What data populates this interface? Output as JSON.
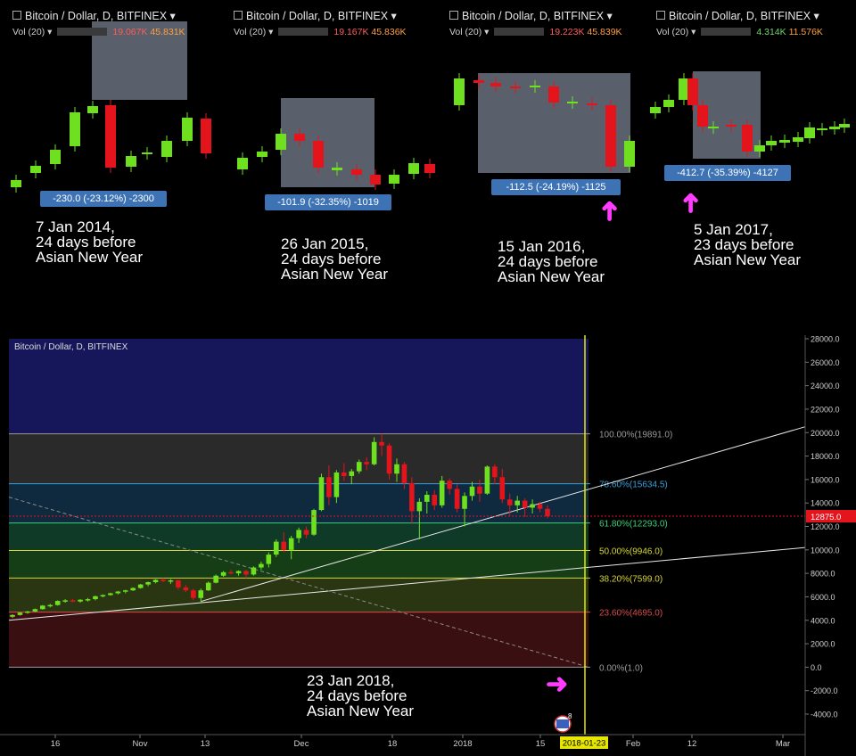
{
  "panels": [
    {
      "title": "Bitcoin / Dollar, D, BITFINEX",
      "vol_label": "Vol (20)",
      "vol_v1": "19.067K",
      "vol_v2": "45.831K",
      "measure": "-230.0 (-23.12%) -2300",
      "caption": "7 Jan 2014,\n24 days before\nAsian New Year"
    },
    {
      "title": "Bitcoin / Dollar, D, BITFINEX",
      "vol_label": "Vol (20)",
      "vol_v1": "19.167K",
      "vol_v2": "45.836K",
      "measure": "-101.9 (-32.35%) -1019",
      "caption": "26 Jan 2015,\n24 days before\nAsian New Year"
    },
    {
      "title": "Bitcoin / Dollar, D, BITFINEX",
      "vol_label": "Vol (20)",
      "vol_v1": "19.223K",
      "vol_v2": "45.839K",
      "measure": "-112.5 (-24.19%) -1125",
      "caption": "15 Jan 2016,\n24 days before\nAsian New Year"
    },
    {
      "title": "Bitcoin / Dollar, D, BITFINEX",
      "vol_label": "Vol (20)",
      "vol_v1": "4.314K",
      "vol_v2": "11.576K",
      "measure": "-412.7 (-35.39%) -4127",
      "caption": "5 Jan 2017,\n23 days before\nAsian New Year"
    }
  ],
  "main": {
    "title": "Bitcoin / Dollar, D, BITFINEX",
    "caption": "23 Jan 2018,\n24 days before\nAsian New Year",
    "date_marker": "2018-01-23",
    "price_marker": "12875.0",
    "badge_count": "8"
  },
  "chart_data": {
    "type": "candlestick",
    "title": "Bitcoin / Dollar, D, BITFINEX",
    "y_ticks": [
      -4000,
      -2000,
      0,
      2000,
      4000,
      6000,
      8000,
      10000,
      12000,
      14000,
      16000,
      18000,
      20000,
      22000,
      24000,
      26000,
      28000
    ],
    "y_tick_labels": [
      "-4000.0",
      "-2000.0",
      "0.0",
      "2000.0",
      "4000.0",
      "6000.0",
      "8000.0",
      "10000.0",
      "12000.0",
      "14000.0",
      "16000.0",
      "18000.0",
      "20000.0",
      "22000.0",
      "24000.0",
      "26000.0",
      "28000.0"
    ],
    "ylim": [
      -5000,
      28000
    ],
    "x_tick_labels": [
      "16",
      "Nov",
      "13",
      "Dec",
      "18",
      "2018",
      "15",
      "Feb",
      "12",
      "Mar"
    ],
    "fib_levels": [
      {
        "label": "100.00%(19891.0)",
        "value": 19891.0,
        "color": "#9a9a9a"
      },
      {
        "label": "78.60%(15634.5)",
        "value": 15634.5,
        "color": "#3aa0d8"
      },
      {
        "label": "61.80%(12293.0)",
        "value": 12293.0,
        "color": "#3ccf7a"
      },
      {
        "label": "50.00%(9946.0)",
        "value": 9946.0,
        "color": "#d6d630"
      },
      {
        "label": "38.20%(7599.0)",
        "value": 7599.0,
        "color": "#d6d630"
      },
      {
        "label": "23.60%(4695.0)",
        "value": 4695.0,
        "color": "#d84a4a"
      },
      {
        "label": "0.00%(1.0)",
        "value": 1.0,
        "color": "#9a9a9a"
      }
    ],
    "ohlc": [
      [
        4300,
        4500,
        4200,
        4450
      ],
      [
        4450,
        4700,
        4400,
        4650
      ],
      [
        4650,
        4800,
        4550,
        4750
      ],
      [
        4750,
        5000,
        4700,
        4950
      ],
      [
        4950,
        5300,
        4900,
        5250
      ],
      [
        5250,
        5400,
        5100,
        5300
      ],
      [
        5300,
        5700,
        5250,
        5650
      ],
      [
        5650,
        5800,
        5500,
        5700
      ],
      [
        5700,
        5800,
        5550,
        5600
      ],
      [
        5600,
        5800,
        5500,
        5750
      ],
      [
        5750,
        5900,
        5600,
        5800
      ],
      [
        5800,
        6100,
        5700,
        6050
      ],
      [
        6050,
        6200,
        5950,
        6150
      ],
      [
        6150,
        6350,
        6100,
        6300
      ],
      [
        6300,
        6500,
        6200,
        6450
      ],
      [
        6450,
        6600,
        6300,
        6550
      ],
      [
        6550,
        6800,
        6500,
        6750
      ],
      [
        6750,
        7100,
        6700,
        7050
      ],
      [
        7050,
        7300,
        6900,
        7250
      ],
      [
        7250,
        7500,
        7150,
        7450
      ],
      [
        7450,
        7600,
        7250,
        7350
      ],
      [
        7350,
        7500,
        7100,
        7400
      ],
      [
        7400,
        7450,
        6600,
        6800
      ],
      [
        6800,
        7000,
        6400,
        6550
      ],
      [
        6550,
        6700,
        5700,
        5900
      ],
      [
        5900,
        6700,
        5600,
        6550
      ],
      [
        6550,
        7300,
        6500,
        7200
      ],
      [
        7200,
        7900,
        7150,
        7800
      ],
      [
        7800,
        8200,
        7700,
        8100
      ],
      [
        8100,
        8300,
        7900,
        8000
      ],
      [
        8000,
        8250,
        7800,
        8200
      ],
      [
        8200,
        8300,
        7600,
        7900
      ],
      [
        7900,
        8600,
        7800,
        8500
      ],
      [
        8500,
        9000,
        8300,
        8800
      ],
      [
        8800,
        9800,
        8500,
        9600
      ],
      [
        9600,
        10900,
        9400,
        10700
      ],
      [
        10700,
        11500,
        9800,
        10000
      ],
      [
        10000,
        11200,
        9200,
        11000
      ],
      [
        11000,
        11900,
        10600,
        11700
      ],
      [
        11700,
        12000,
        11000,
        11300
      ],
      [
        11300,
        13500,
        11200,
        13400
      ],
      [
        13400,
        16500,
        13300,
        16200
      ],
      [
        16200,
        17200,
        13800,
        14500
      ],
      [
        14500,
        16800,
        14000,
        16600
      ],
      [
        16600,
        17400,
        15900,
        16300
      ],
      [
        16300,
        16900,
        15600,
        16700
      ],
      [
        16700,
        17700,
        16500,
        17500
      ],
      [
        17500,
        17900,
        16800,
        17300
      ],
      [
        17300,
        19600,
        17200,
        19200
      ],
      [
        19200,
        19891,
        18000,
        18900
      ],
      [
        18900,
        19100,
        16000,
        16500
      ],
      [
        16500,
        17800,
        15800,
        17300
      ],
      [
        17300,
        17500,
        15200,
        15700
      ],
      [
        15700,
        16200,
        12200,
        13300
      ],
      [
        13300,
        14400,
        10900,
        14100
      ],
      [
        14100,
        15000,
        13100,
        14700
      ],
      [
        14700,
        15100,
        13400,
        13800
      ],
      [
        13800,
        16300,
        13600,
        15900
      ],
      [
        15900,
        16100,
        14700,
        15200
      ],
      [
        15200,
        15600,
        13200,
        13500
      ],
      [
        13500,
        14900,
        12000,
        14600
      ],
      [
        14600,
        15800,
        14200,
        15400
      ],
      [
        15400,
        16000,
        14100,
        14800
      ],
      [
        14800,
        17200,
        14700,
        17100
      ],
      [
        17100,
        17300,
        15600,
        16200
      ],
      [
        16200,
        16900,
        14000,
        14300
      ],
      [
        14300,
        14800,
        12900,
        13800
      ],
      [
        13800,
        14600,
        13200,
        14200
      ],
      [
        14200,
        14400,
        12800,
        13600
      ],
      [
        13600,
        14300,
        13100,
        13900
      ],
      [
        13900,
        14100,
        13200,
        13500
      ],
      [
        13500,
        13800,
        12700,
        12875
      ]
    ],
    "notes": "Fibonacci retracement levels, trend lines and vertical marker at 2018-01-23"
  }
}
